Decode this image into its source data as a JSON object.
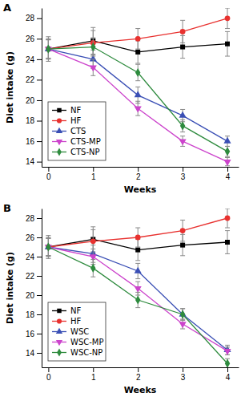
{
  "chart_data": [
    {
      "type": "line",
      "title": "A",
      "x_label": "Weeks",
      "y_label": "Diet intake (g)",
      "x": [
        0,
        1,
        2,
        3,
        4
      ],
      "xlim": [
        -0.15,
        4.25
      ],
      "xticks": [
        0,
        1,
        2,
        3,
        4
      ],
      "ylim": [
        13.5,
        29
      ],
      "yticks": [
        14,
        16,
        18,
        20,
        22,
        24,
        26,
        28
      ],
      "legend": "lower left",
      "series": [
        {
          "name": "NF",
          "color": "#000000",
          "marker": "square",
          "values": [
            25,
            25.8,
            24.7,
            25.2,
            25.5
          ],
          "errors": [
            1.2,
            1.3,
            1.1,
            1.1,
            1.2
          ]
        },
        {
          "name": "HF",
          "color": "#e8312f",
          "marker": "circle",
          "values": [
            25,
            25.6,
            26,
            26.7,
            28
          ],
          "errors": [
            1.0,
            1.2,
            1.0,
            1.1,
            1.0
          ]
        },
        {
          "name": "CTS",
          "color": "#3a4fb5",
          "marker": "triangle-up",
          "values": [
            25,
            24,
            20.5,
            18.5,
            16
          ],
          "errors": [
            0.9,
            0.9,
            0.8,
            0.6,
            0.5
          ]
        },
        {
          "name": "CTS-MP",
          "color": "#cc44cc",
          "marker": "triangle-down",
          "values": [
            25,
            23.2,
            19.2,
            16,
            14
          ],
          "errors": [
            0.9,
            0.8,
            0.7,
            0.5,
            0.4
          ]
        },
        {
          "name": "CTS-NP",
          "color": "#2e8b3e",
          "marker": "diamond",
          "values": [
            25,
            25.2,
            22.7,
            17.5,
            15
          ],
          "errors": [
            0.9,
            0.9,
            0.8,
            0.6,
            0.5
          ]
        }
      ]
    },
    {
      "type": "line",
      "title": "B",
      "x_label": "Weeks",
      "y_label": "Diet intake (g)",
      "x": [
        0,
        1,
        2,
        3,
        4
      ],
      "xlim": [
        -0.15,
        4.25
      ],
      "xticks": [
        0,
        1,
        2,
        3,
        4
      ],
      "ylim": [
        12.5,
        29
      ],
      "yticks": [
        14,
        16,
        18,
        20,
        22,
        24,
        26,
        28
      ],
      "legend": "lower left",
      "series": [
        {
          "name": "NF",
          "color": "#000000",
          "marker": "square",
          "values": [
            25,
            25.8,
            24.7,
            25.2,
            25.5
          ],
          "errors": [
            1.2,
            1.3,
            1.1,
            1.1,
            1.2
          ]
        },
        {
          "name": "HF",
          "color": "#e8312f",
          "marker": "circle",
          "values": [
            25,
            25.6,
            26,
            26.7,
            28
          ],
          "errors": [
            1.0,
            1.2,
            1.0,
            1.1,
            1.0
          ]
        },
        {
          "name": "WSC",
          "color": "#3a4fb5",
          "marker": "triangle-up",
          "values": [
            25,
            24.3,
            22.5,
            18,
            14.3
          ],
          "errors": [
            0.9,
            0.9,
            0.8,
            0.6,
            0.5
          ]
        },
        {
          "name": "WSC-MP",
          "color": "#cc44cc",
          "marker": "triangle-down",
          "values": [
            25,
            24,
            20.7,
            17,
            14.2
          ],
          "errors": [
            0.9,
            0.8,
            0.7,
            0.5,
            0.4
          ]
        },
        {
          "name": "WSC-NP",
          "color": "#2e8b3e",
          "marker": "diamond",
          "values": [
            25,
            22.8,
            19.5,
            18,
            12.9
          ],
          "errors": [
            0.9,
            0.9,
            0.8,
            0.6,
            0.5
          ]
        }
      ]
    }
  ]
}
